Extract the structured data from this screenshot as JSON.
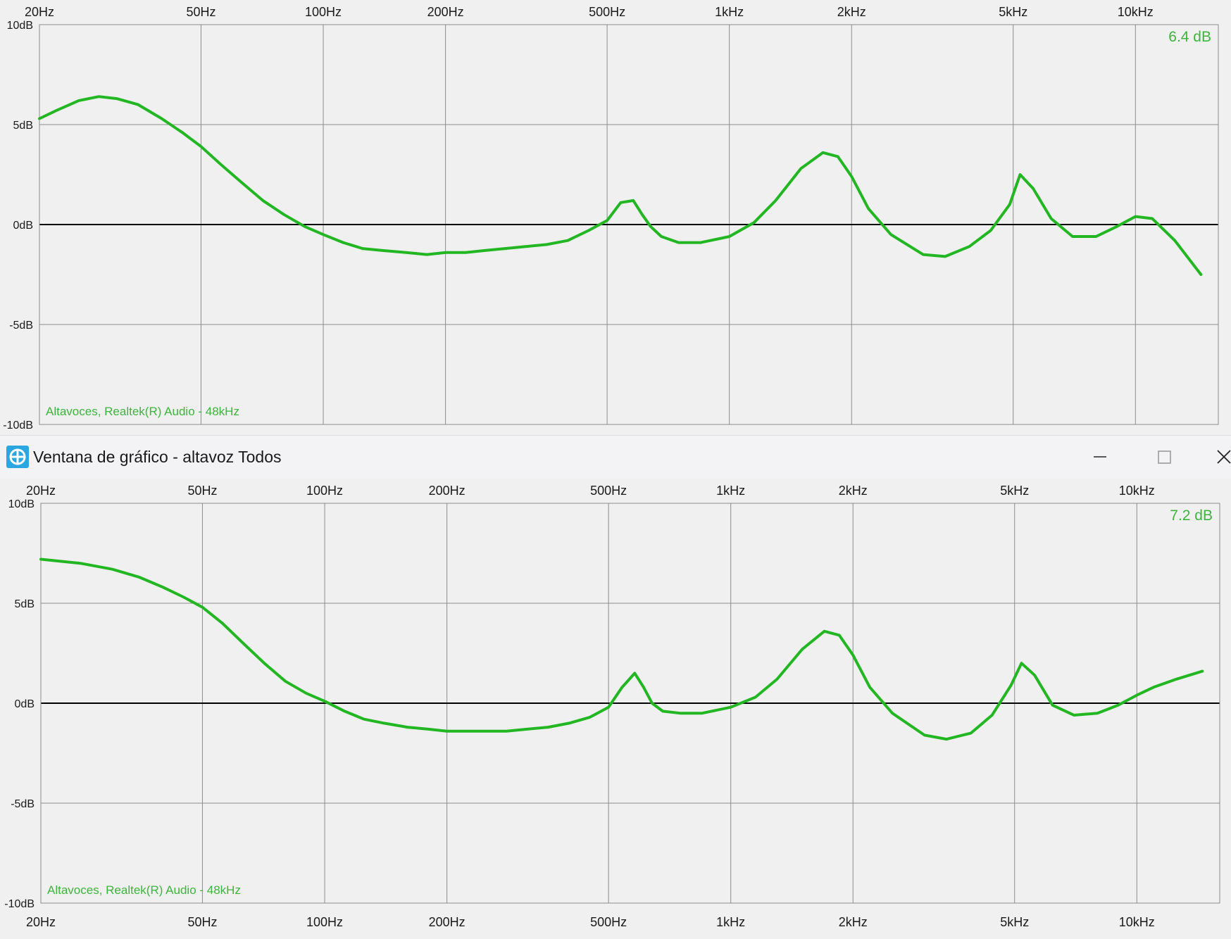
{
  "colors": {
    "background": "#f0f0f0",
    "grid": "#8c8c8c",
    "zero_line": "#000000",
    "curve": "#22b722",
    "label_green": "#3cb53c"
  },
  "window": {
    "title": "Ventana de gráfico - altavoz Todos",
    "icon": "app-logo-icon",
    "controls": [
      "minimize-icon",
      "maximize-icon",
      "close-icon"
    ]
  },
  "chart_data": [
    {
      "type": "line",
      "x_scale": "log",
      "x_ticks": [
        "20Hz",
        "50Hz",
        "100Hz",
        "200Hz",
        "500Hz",
        "1kHz",
        "2kHz",
        "5kHz",
        "10kHz"
      ],
      "y_ticks": [
        "10dB",
        "5dB",
        "0dB",
        "-5dB",
        "-10dB"
      ],
      "xlim": [
        20,
        16000
      ],
      "ylim": [
        -10,
        10
      ],
      "grid": true,
      "peak_label": "6.4 dB",
      "device_label": "Altavoces, Realtek(R) Audio - 48kHz",
      "series": [
        {
          "x": [
            20,
            22,
            25,
            28,
            31,
            35,
            40,
            45,
            50,
            56,
            63,
            71,
            80,
            90,
            100,
            112,
            125,
            140,
            160,
            180,
            200,
            224,
            250,
            280,
            315,
            355,
            400,
            450,
            500,
            540,
            580,
            610,
            640,
            680,
            750,
            850,
            1000,
            1150,
            1300,
            1500,
            1700,
            1850,
            2000,
            2200,
            2500,
            3000,
            3400,
            3900,
            4400,
            4900,
            5200,
            5600,
            6200,
            7000,
            8000,
            9000,
            10000,
            11000,
            12500,
            14500
          ],
          "y": [
            5.3,
            5.7,
            6.2,
            6.4,
            6.3,
            6.0,
            5.3,
            4.6,
            3.9,
            3.0,
            2.1,
            1.2,
            0.5,
            -0.1,
            -0.5,
            -0.9,
            -1.2,
            -1.3,
            -1.4,
            -1.5,
            -1.4,
            -1.4,
            -1.3,
            -1.2,
            -1.1,
            -1.0,
            -0.8,
            -0.3,
            0.2,
            1.1,
            1.2,
            0.5,
            -0.1,
            -0.6,
            -0.9,
            -0.9,
            -0.6,
            0.1,
            1.2,
            2.8,
            3.6,
            3.4,
            2.4,
            0.8,
            -0.5,
            -1.5,
            -1.6,
            -1.1,
            -0.3,
            1.0,
            2.5,
            1.8,
            0.3,
            -0.6,
            -0.6,
            -0.1,
            0.4,
            0.3,
            -0.8,
            -2.5
          ]
        }
      ]
    },
    {
      "type": "line",
      "x_scale": "log",
      "x_ticks": [
        "20Hz",
        "50Hz",
        "100Hz",
        "200Hz",
        "500Hz",
        "1kHz",
        "2kHz",
        "5kHz",
        "10kHz"
      ],
      "y_ticks": [
        "10dB",
        "5dB",
        "0dB",
        "-5dB",
        "-10dB"
      ],
      "xlim": [
        20,
        16000
      ],
      "ylim": [
        -10,
        10
      ],
      "grid": true,
      "peak_label": "7.2 dB",
      "device_label": "Altavoces, Realtek(R) Audio - 48kHz",
      "series": [
        {
          "x": [
            20,
            25,
            30,
            35,
            40,
            45,
            50,
            56,
            63,
            71,
            80,
            90,
            100,
            112,
            125,
            140,
            160,
            180,
            200,
            224,
            250,
            280,
            315,
            355,
            400,
            450,
            500,
            540,
            580,
            610,
            640,
            680,
            750,
            850,
            1000,
            1150,
            1300,
            1500,
            1700,
            1850,
            2000,
            2200,
            2500,
            3000,
            3400,
            3900,
            4400,
            4900,
            5200,
            5600,
            6200,
            7000,
            8000,
            9000,
            10000,
            11000,
            12500,
            14500
          ],
          "y": [
            7.2,
            7.0,
            6.7,
            6.3,
            5.8,
            5.3,
            4.8,
            4.0,
            3.0,
            2.0,
            1.1,
            0.5,
            0.1,
            -0.4,
            -0.8,
            -1.0,
            -1.2,
            -1.3,
            -1.4,
            -1.4,
            -1.4,
            -1.4,
            -1.3,
            -1.2,
            -1.0,
            -0.7,
            -0.2,
            0.8,
            1.5,
            0.8,
            0.0,
            -0.4,
            -0.5,
            -0.5,
            -0.2,
            0.3,
            1.2,
            2.7,
            3.6,
            3.4,
            2.4,
            0.8,
            -0.5,
            -1.6,
            -1.8,
            -1.5,
            -0.6,
            0.9,
            2.0,
            1.4,
            -0.1,
            -0.6,
            -0.5,
            -0.1,
            0.4,
            0.8,
            1.2,
            1.6
          ]
        }
      ]
    }
  ]
}
